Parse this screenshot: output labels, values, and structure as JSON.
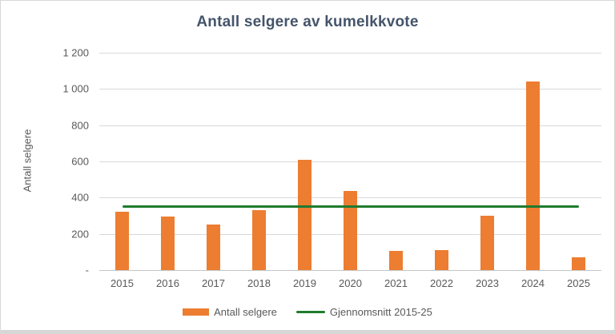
{
  "chart_data": {
    "type": "bar",
    "title": "Antall selgere av kumelkkvote",
    "xlabel": "",
    "ylabel": "Antall selgere",
    "categories": [
      "2015",
      "2016",
      "2017",
      "2018",
      "2019",
      "2020",
      "2021",
      "2022",
      "2023",
      "2024",
      "2025"
    ],
    "series": [
      {
        "name": "Antall selgere",
        "type": "bar",
        "values": [
          320,
          295,
          250,
          330,
          610,
          435,
          105,
          110,
          300,
          1040,
          70
        ]
      },
      {
        "name": "Gjennomsnitt 2015-25",
        "type": "line",
        "value": 351
      }
    ],
    "ylim": [
      0,
      1200
    ],
    "yticks": [
      {
        "value": 1200,
        "label": "1 200"
      },
      {
        "value": 1000,
        "label": "1 000"
      },
      {
        "value": 800,
        "label": "800"
      },
      {
        "value": 600,
        "label": "600"
      },
      {
        "value": 400,
        "label": "400"
      },
      {
        "value": 200,
        "label": "200"
      },
      {
        "value": 0,
        "label": "-"
      }
    ],
    "grid": true,
    "legend_position": "bottom"
  },
  "colors": {
    "bar": "#ed7d31",
    "average_line": "#1e7b2e",
    "title": "#44546a",
    "axis_text": "#595959",
    "gridline": "#d9d9d9",
    "axis_line": "#c6c6c6"
  }
}
